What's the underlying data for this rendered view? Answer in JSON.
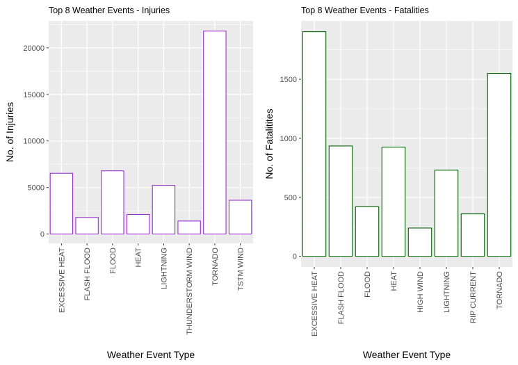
{
  "chart_data": [
    {
      "type": "bar",
      "title": "Top 8 Weather Events - Injuries",
      "xlabel": "Weather Event Type",
      "ylabel": "No. of Injuries",
      "categories": [
        "EXCESSIVE HEAT",
        "FLASH FLOOD",
        "FLOOD",
        "HEAT",
        "LIGHTNING",
        "THUNDERSTORM WIND",
        "TORNADO",
        "TSTM WIND"
      ],
      "values": [
        6525,
        1777,
        6789,
        2100,
        5230,
        1400,
        21800,
        3630
      ],
      "yticks": [
        0,
        5000,
        10000,
        15000,
        20000
      ],
      "ylim": [
        -1000,
        22900
      ],
      "grid": true,
      "bar_outline_color": "#9932cc",
      "bar_fill_color": "#ffffff",
      "panel_background": "#ebebeb"
    },
    {
      "type": "bar",
      "title": "Top 8 Weather Events - Fatalities",
      "xlabel": "Weather Event Type",
      "ylabel": "No. of Fatalitites",
      "categories": [
        "EXCESSIVE HEAT",
        "FLASH FLOOD",
        "FLOOD",
        "HEAT",
        "HIGH WIND",
        "LIGHTNING",
        "RIP CURRENT",
        "TORNADO"
      ],
      "values": [
        1903,
        935,
        420,
        925,
        240,
        730,
        360,
        1550
      ],
      "yticks": [
        0,
        500,
        1000,
        1500
      ],
      "ylim": [
        -90,
        1995
      ],
      "grid": true,
      "bar_outline_color": "#006400",
      "bar_fill_color": "#ffffff",
      "panel_background": "#ebebeb"
    }
  ]
}
